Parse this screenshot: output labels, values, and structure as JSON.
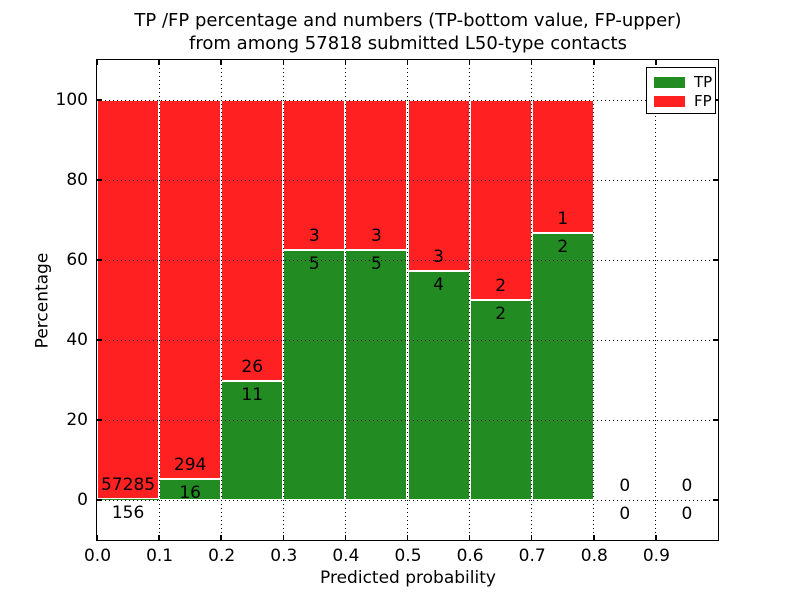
{
  "figure": {
    "title_line1": "TP /FP percentage and numbers (TP-bottom value, FP-upper)",
    "title_line2": "from among 57818 submitted L50-type contacts",
    "total_submitted": 57818
  },
  "chart_data": {
    "type": "bar",
    "stacked": true,
    "title": "TP /FP percentage and numbers (TP-bottom value, FP-upper) from among 57818 submitted L50-type contacts",
    "xlabel": "Predicted probability",
    "ylabel": "Percentage",
    "xlim": [
      0.0,
      1.0
    ],
    "ylim": [
      -10,
      110
    ],
    "grid": true,
    "legend_position": "upper right",
    "background_color": "#ffffff",
    "x_ticks": [
      {
        "v": 0.0,
        "label": "0.0"
      },
      {
        "v": 0.1,
        "label": "0.1"
      },
      {
        "v": 0.2,
        "label": "0.2"
      },
      {
        "v": 0.3,
        "label": "0.3"
      },
      {
        "v": 0.4,
        "label": "0.4"
      },
      {
        "v": 0.5,
        "label": "0.5"
      },
      {
        "v": 0.6,
        "label": "0.6"
      },
      {
        "v": 0.7,
        "label": "0.7"
      },
      {
        "v": 0.8,
        "label": "0.8"
      },
      {
        "v": 0.9,
        "label": "0.9"
      }
    ],
    "y_ticks": [
      {
        "v": 0,
        "label": "0"
      },
      {
        "v": 20,
        "label": "20"
      },
      {
        "v": 40,
        "label": "40"
      },
      {
        "v": 60,
        "label": "60"
      },
      {
        "v": 80,
        "label": "80"
      },
      {
        "v": 100,
        "label": "100"
      }
    ],
    "series": [
      {
        "name": "TP",
        "color": "#228b22",
        "role": "bottom"
      },
      {
        "name": "FP",
        "color": "#ff2121",
        "role": "top"
      }
    ],
    "bar_edge_color": "#ffffff",
    "bins": [
      {
        "range": [
          0.0,
          0.1
        ],
        "tp": 156,
        "fp": 57285,
        "tp_pct": 0.27,
        "fp_pct": 99.73
      },
      {
        "range": [
          0.1,
          0.2
        ],
        "tp": 16,
        "fp": 294,
        "tp_pct": 5.16,
        "fp_pct": 94.84
      },
      {
        "range": [
          0.2,
          0.3
        ],
        "tp": 11,
        "fp": 26,
        "tp_pct": 29.73,
        "fp_pct": 70.27
      },
      {
        "range": [
          0.3,
          0.4
        ],
        "tp": 5,
        "fp": 3,
        "tp_pct": 62.5,
        "fp_pct": 37.5
      },
      {
        "range": [
          0.4,
          0.5
        ],
        "tp": 5,
        "fp": 3,
        "tp_pct": 62.5,
        "fp_pct": 37.5
      },
      {
        "range": [
          0.5,
          0.6
        ],
        "tp": 4,
        "fp": 3,
        "tp_pct": 57.14,
        "fp_pct": 42.86
      },
      {
        "range": [
          0.6,
          0.7
        ],
        "tp": 2,
        "fp": 2,
        "tp_pct": 50.0,
        "fp_pct": 50.0
      },
      {
        "range": [
          0.7,
          0.8
        ],
        "tp": 2,
        "fp": 1,
        "tp_pct": 66.67,
        "fp_pct": 33.33
      },
      {
        "range": [
          0.8,
          0.9
        ],
        "tp": 0,
        "fp": 0,
        "tp_pct": 0,
        "fp_pct": 0
      },
      {
        "range": [
          0.9,
          1.0
        ],
        "tp": 0,
        "fp": 0,
        "tp_pct": 0,
        "fp_pct": 0
      }
    ]
  }
}
